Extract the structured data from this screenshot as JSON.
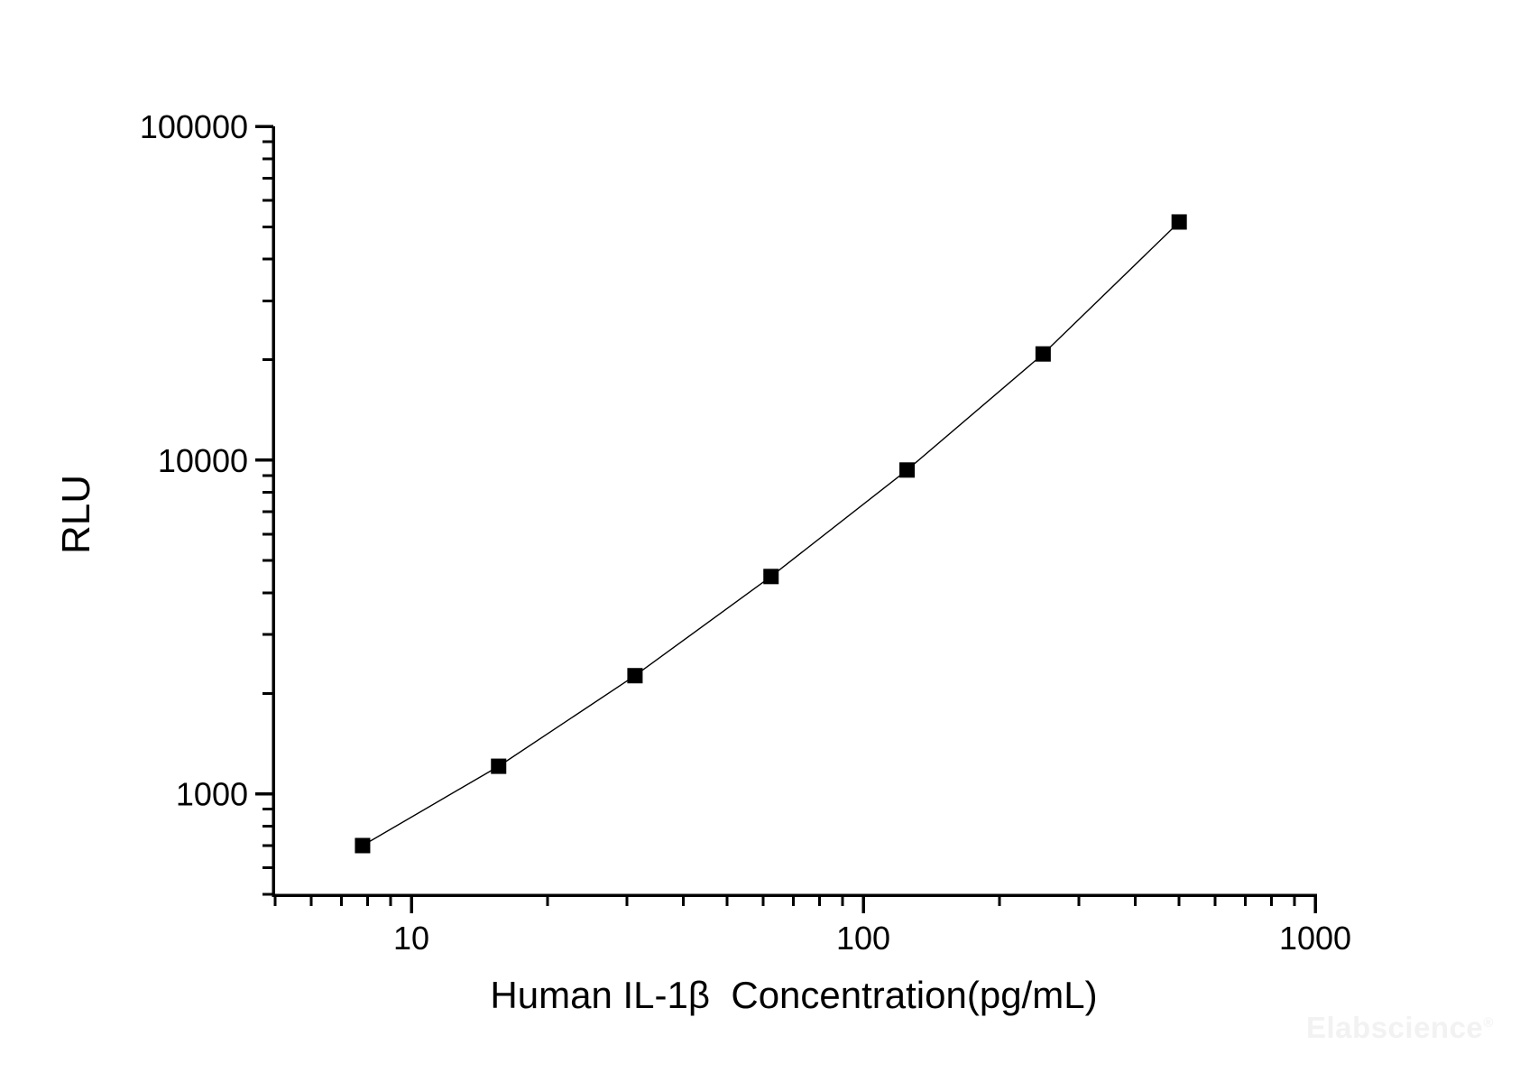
{
  "watermark": {
    "text": "Elabscience",
    "mark": "®"
  },
  "chart_data": {
    "type": "scatter",
    "title": "",
    "xlabel": "Human IL-1β  Concentration(pg/mL)",
    "ylabel": "RLU",
    "x_scale": "log",
    "y_scale": "log",
    "xlim": [
      4.95,
      1000
    ],
    "ylim": [
      497,
      100000
    ],
    "grid": false,
    "legend": "none",
    "x_ticks": [
      {
        "value": 10,
        "label": "10"
      },
      {
        "value": 100,
        "label": "100"
      },
      {
        "value": 1000,
        "label": "1000"
      }
    ],
    "y_ticks": [
      {
        "value": 1000,
        "label": "1000"
      },
      {
        "value": 10000,
        "label": "10000"
      },
      {
        "value": 100000,
        "label": "100000"
      }
    ],
    "minor_ticks": "log-mantissa-2-to-9",
    "series": [
      {
        "marker": "filled-square",
        "line": "solid",
        "color": "#000000",
        "points": [
          {
            "x": 7.8,
            "y": 700
          },
          {
            "x": 15.6,
            "y": 1210
          },
          {
            "x": 31.25,
            "y": 2260
          },
          {
            "x": 62.5,
            "y": 4480
          },
          {
            "x": 125,
            "y": 9340
          },
          {
            "x": 250,
            "y": 20800
          },
          {
            "x": 500,
            "y": 51700
          }
        ]
      }
    ]
  }
}
